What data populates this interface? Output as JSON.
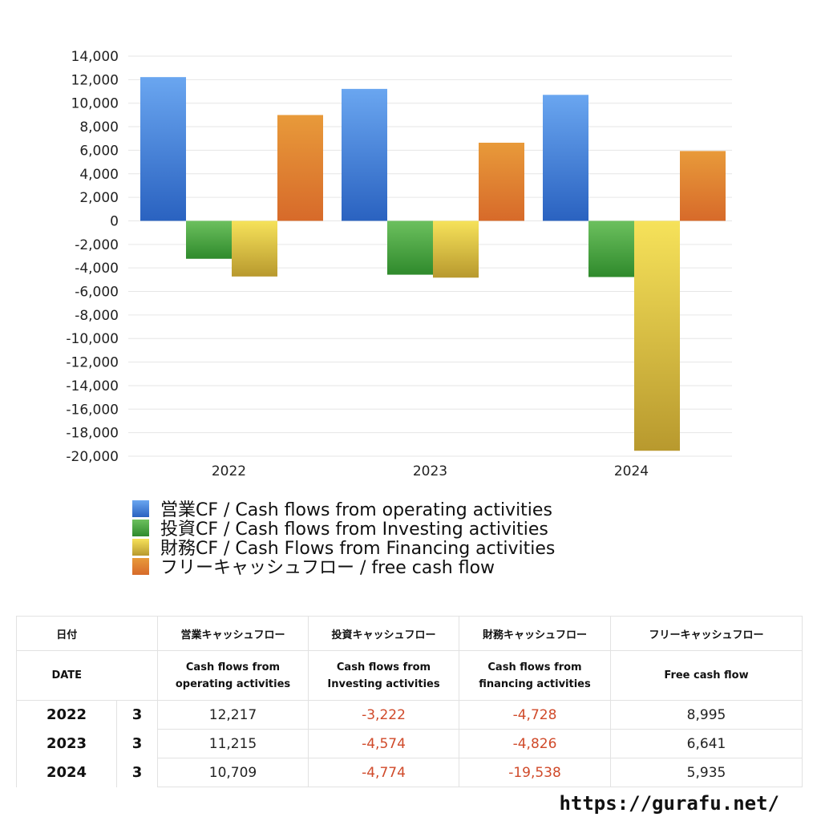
{
  "chart_data": {
    "type": "bar",
    "categories": [
      "2022",
      "2023",
      "2024"
    ],
    "series": [
      {
        "name": "営業CF / Cash flows from operating activities",
        "values": [
          12217,
          11215,
          10709
        ],
        "color_top": "#6aa6f0",
        "color_bottom": "#2a62c0"
      },
      {
        "name": "投資CF / Cash flows from Investing activities",
        "values": [
          -3222,
          -4574,
          -4774
        ],
        "color_top": "#6cc05e",
        "color_bottom": "#2f8a2c"
      },
      {
        "name": "財務CF / Cash Flows from Financing activities",
        "values": [
          -4728,
          -4826,
          -19538
        ],
        "color_top": "#f6e25a",
        "color_bottom": "#b8992e"
      },
      {
        "name": "フリーキャッシュフロー / free cash flow",
        "values": [
          8995,
          6641,
          5935
        ],
        "color_top": "#e89a3a",
        "color_bottom": "#d76a2a"
      }
    ],
    "ylim": [
      -20000,
      14000
    ],
    "yticks": [
      "14,000",
      "12,000",
      "10,000",
      "8,000",
      "6,000",
      "4,000",
      "2,000",
      "0",
      "-2,000",
      "-4,000",
      "-6,000",
      "-8,000",
      "-10,000",
      "-12,000",
      "-14,000",
      "-16,000",
      "-18,000",
      "-20,000"
    ],
    "grid": true,
    "legend_position": "bottom-left"
  },
  "table": {
    "header_jp": [
      "日付",
      "営業キャッシュフロー",
      "投資キャッシュフロー",
      "財務キャッシュフロー",
      "フリーキャッシュフロー"
    ],
    "header_en": [
      "DATE",
      "Cash flows from\noperating activities",
      "Cash flows from\nInvesting activities",
      "Cash flows from\nfinancing activities",
      "Free cash flow"
    ],
    "rows": [
      {
        "year": "2022",
        "month": "3",
        "op": "12,217",
        "inv": "-3,222",
        "fin": "-4,728",
        "fcf": "8,995"
      },
      {
        "year": "2023",
        "month": "3",
        "op": "11,215",
        "inv": "-4,574",
        "fin": "-4,826",
        "fcf": "6,641"
      },
      {
        "year": "2024",
        "month": "3",
        "op": "10,709",
        "inv": "-4,774",
        "fin": "-19,538",
        "fcf": "5,935"
      }
    ]
  },
  "footer": {
    "site": "https://gurafu.net/"
  }
}
